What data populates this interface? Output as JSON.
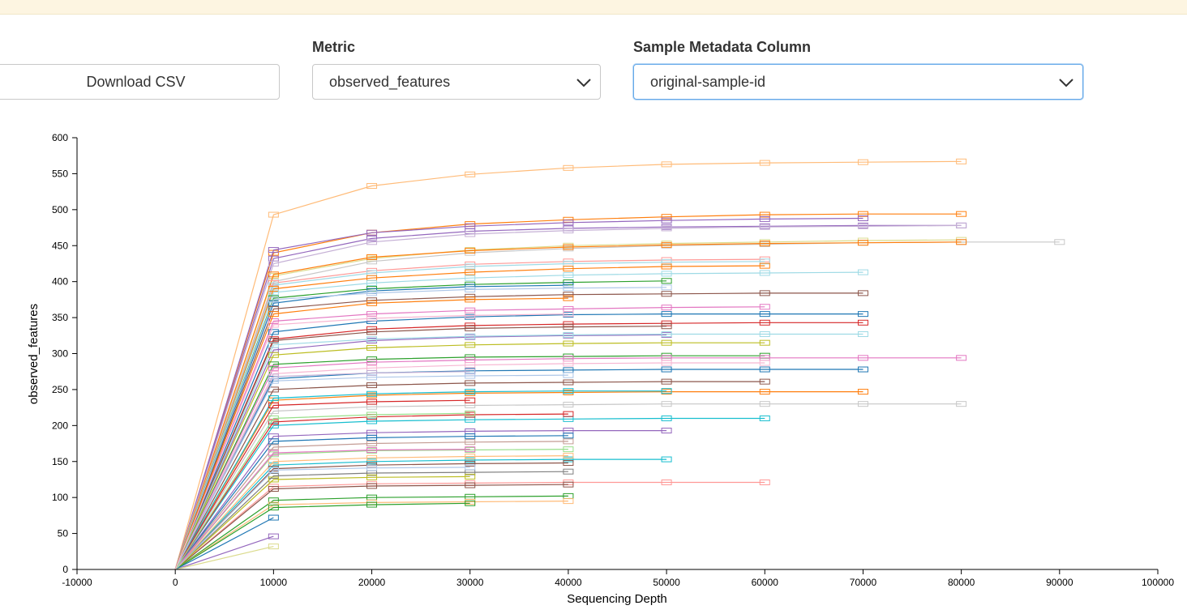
{
  "controls": {
    "download_label": "Download CSV",
    "metric_label": "Metric",
    "metric_value": "observed_features",
    "column_label": "Sample Metadata Column",
    "column_value": "original-sample-id"
  },
  "icons": {
    "metric_dropdown": "chevron-down-icon",
    "column_dropdown": "chevron-down-icon"
  },
  "chart_data": {
    "type": "line",
    "title": "",
    "xlabel": "Sequencing Depth",
    "ylabel": "observed_features",
    "xlim": [
      -10000,
      100000
    ],
    "ylim": [
      0,
      600
    ],
    "x_ticks": [
      -10000,
      0,
      10000,
      20000,
      30000,
      40000,
      50000,
      60000,
      70000,
      80000,
      90000,
      100000
    ],
    "y_ticks": [
      0,
      50,
      100,
      150,
      200,
      250,
      300,
      350,
      400,
      450,
      500,
      550,
      600
    ],
    "grid": false,
    "legend": "none",
    "palette": [
      "#1f77b4",
      "#aec7e8",
      "#ff7f0e",
      "#ffbb78",
      "#2ca02c",
      "#98df8a",
      "#d62728",
      "#ff9896",
      "#9467bd",
      "#c5b0d5",
      "#8c564b",
      "#c49c94",
      "#e377c2",
      "#f7b6d2",
      "#7f7f7f",
      "#c7c7c7",
      "#bcbd22",
      "#dbdb8d",
      "#17becf",
      "#9edae5"
    ],
    "note_boxes": "each series has a small box marker at every sampled depth",
    "series": [
      {
        "color": "#ffbb78",
        "x": [
          0,
          10000,
          20000,
          30000,
          40000,
          50000,
          60000,
          70000,
          80000
        ],
        "values": [
          0,
          493,
          533,
          549,
          558,
          563,
          565,
          566,
          567
        ]
      },
      {
        "color": "#ff7f0e",
        "x": [
          0,
          10000,
          20000,
          30000,
          40000,
          50000,
          60000,
          70000,
          80000
        ],
        "values": [
          0,
          440,
          468,
          480,
          486,
          490,
          493,
          494,
          494
        ]
      },
      {
        "color": "#9467bd",
        "x": [
          0,
          10000,
          20000,
          30000,
          40000,
          50000,
          60000,
          70000
        ],
        "values": [
          0,
          444,
          468,
          477,
          482,
          485,
          487,
          488
        ]
      },
      {
        "color": "#9467bd",
        "x": [
          0,
          10000,
          20000,
          30000,
          40000,
          50000,
          60000,
          70000,
          80000
        ],
        "values": [
          0,
          432,
          460,
          470,
          474,
          476,
          477,
          478,
          478
        ]
      },
      {
        "color": "#c5b0d5",
        "x": [
          0,
          10000,
          20000,
          30000,
          40000,
          50000,
          60000,
          70000,
          80000
        ],
        "values": [
          0,
          425,
          455,
          466,
          471,
          474,
          476,
          477,
          478
        ]
      },
      {
        "color": "#dbdb8d",
        "x": [
          0,
          10000,
          20000,
          30000,
          40000,
          50000,
          60000,
          70000,
          80000
        ],
        "values": [
          0,
          408,
          432,
          444,
          450,
          453,
          455,
          457,
          458
        ]
      },
      {
        "color": "#c7c7c7",
        "x": [
          0,
          10000,
          20000,
          30000,
          40000,
          50000,
          60000,
          70000,
          80000,
          90000
        ],
        "values": [
          0,
          400,
          428,
          440,
          446,
          450,
          452,
          454,
          455,
          455
        ]
      },
      {
        "color": "#ff7f0e",
        "x": [
          0,
          10000,
          20000,
          30000,
          40000,
          50000,
          60000,
          70000,
          80000
        ],
        "values": [
          0,
          410,
          434,
          443,
          448,
          451,
          453,
          454,
          455
        ]
      },
      {
        "color": "#ff9896",
        "x": [
          0,
          10000,
          20000,
          30000,
          40000,
          50000,
          60000
        ],
        "values": [
          0,
          398,
          415,
          424,
          428,
          430,
          431
        ]
      },
      {
        "color": "#9edae5",
        "x": [
          0,
          10000,
          20000,
          30000,
          40000,
          50000,
          60000
        ],
        "values": [
          0,
          395,
          412,
          421,
          425,
          427,
          428
        ]
      },
      {
        "color": "#ff7f0e",
        "x": [
          0,
          10000,
          20000,
          30000,
          40000,
          50000,
          60000
        ],
        "values": [
          0,
          390,
          405,
          413,
          418,
          421,
          422
        ]
      },
      {
        "color": "#9edae5",
        "x": [
          0,
          10000,
          20000,
          30000,
          40000,
          50000,
          60000,
          70000
        ],
        "values": [
          0,
          385,
          398,
          405,
          409,
          411,
          412,
          413
        ]
      },
      {
        "color": "#2ca02c",
        "x": [
          0,
          10000,
          20000,
          30000,
          40000,
          50000
        ],
        "values": [
          0,
          377,
          390,
          396,
          399,
          401
        ]
      },
      {
        "color": "#1f77b4",
        "x": [
          0,
          10000,
          20000,
          30000,
          40000
        ],
        "values": [
          0,
          370,
          387,
          393,
          395
        ]
      },
      {
        "color": "#aec7e8",
        "x": [
          0,
          10000,
          20000,
          30000,
          40000,
          50000
        ],
        "values": [
          0,
          375,
          384,
          389,
          391,
          392
        ]
      },
      {
        "color": "#8c564b",
        "x": [
          0,
          10000,
          20000,
          30000,
          40000,
          50000,
          60000,
          70000
        ],
        "values": [
          0,
          362,
          374,
          379,
          382,
          383,
          384,
          384
        ]
      },
      {
        "color": "#e377c2",
        "x": [
          0,
          10000,
          20000,
          30000,
          40000,
          50000,
          60000
        ],
        "values": [
          0,
          345,
          355,
          360,
          362,
          364,
          365
        ]
      },
      {
        "color": "#1f77b4",
        "x": [
          0,
          10000,
          20000,
          30000,
          40000,
          50000,
          60000,
          70000
        ],
        "values": [
          0,
          330,
          345,
          351,
          354,
          355,
          355,
          355
        ]
      },
      {
        "color": "#d62728",
        "x": [
          0,
          10000,
          20000,
          30000,
          40000,
          50000,
          60000,
          70000
        ],
        "values": [
          0,
          320,
          334,
          339,
          341,
          342,
          343,
          343
        ]
      },
      {
        "color": "#8c564b",
        "x": [
          0,
          10000,
          20000,
          30000,
          40000,
          50000
        ],
        "values": [
          0,
          318,
          330,
          335,
          337,
          338
        ]
      },
      {
        "color": "#9467bd",
        "x": [
          0,
          10000,
          20000,
          30000,
          40000,
          50000
        ],
        "values": [
          0,
          305,
          318,
          323,
          325,
          326
        ]
      },
      {
        "color": "#9edae5",
        "x": [
          0,
          10000,
          20000,
          30000,
          40000,
          50000,
          60000,
          70000
        ],
        "values": [
          0,
          312,
          320,
          324,
          326,
          327,
          327,
          327
        ]
      },
      {
        "color": "#bcbd22",
        "x": [
          0,
          10000,
          20000,
          30000,
          40000,
          50000,
          60000
        ],
        "values": [
          0,
          298,
          308,
          312,
          314,
          315,
          315
        ]
      },
      {
        "color": "#2ca02c",
        "x": [
          0,
          10000,
          20000,
          30000,
          40000,
          50000,
          60000
        ],
        "values": [
          0,
          285,
          292,
          295,
          296,
          297,
          297
        ]
      },
      {
        "color": "#e377c2",
        "x": [
          0,
          10000,
          20000,
          30000,
          40000,
          50000,
          60000,
          70000,
          80000
        ],
        "values": [
          0,
          280,
          288,
          291,
          293,
          294,
          294,
          294,
          294
        ]
      },
      {
        "color": "#f7b6d2",
        "x": [
          0,
          10000,
          20000,
          30000,
          40000,
          50000,
          60000
        ],
        "values": [
          0,
          272,
          280,
          284,
          286,
          287,
          287
        ]
      },
      {
        "color": "#1f77b4",
        "x": [
          0,
          10000,
          20000,
          30000,
          40000,
          50000,
          60000,
          70000
        ],
        "values": [
          0,
          265,
          273,
          276,
          277,
          278,
          278,
          278
        ]
      },
      {
        "color": "#8c564b",
        "x": [
          0,
          10000,
          20000,
          30000,
          40000,
          50000,
          60000
        ],
        "values": [
          0,
          250,
          256,
          259,
          260,
          261,
          261
        ]
      },
      {
        "color": "#ff7f0e",
        "x": [
          0,
          10000,
          20000,
          30000,
          40000,
          50000,
          60000,
          70000
        ],
        "values": [
          0,
          235,
          242,
          245,
          246,
          247,
          247,
          247
        ]
      },
      {
        "color": "#17becf",
        "x": [
          0,
          10000,
          20000,
          30000,
          40000,
          50000
        ],
        "values": [
          0,
          238,
          244,
          247,
          248,
          248
        ]
      },
      {
        "color": "#c7c7c7",
        "x": [
          0,
          10000,
          20000,
          30000,
          40000,
          50000,
          60000,
          70000,
          80000
        ],
        "values": [
          0,
          220,
          226,
          228,
          229,
          230,
          230,
          230,
          230
        ]
      },
      {
        "color": "#17becf",
        "x": [
          0,
          10000,
          20000,
          30000,
          40000,
          50000,
          60000
        ],
        "values": [
          0,
          200,
          206,
          208,
          209,
          210,
          210
        ]
      },
      {
        "color": "#9467bd",
        "x": [
          0,
          10000,
          20000,
          30000,
          40000,
          50000
        ],
        "values": [
          0,
          185,
          190,
          192,
          193,
          193
        ]
      },
      {
        "color": "#d62728",
        "x": [
          0,
          10000,
          20000,
          30000,
          40000
        ],
        "values": [
          0,
          205,
          212,
          215,
          216
        ]
      },
      {
        "color": "#1f77b4",
        "x": [
          0,
          10000,
          20000,
          30000,
          40000
        ],
        "values": [
          0,
          178,
          183,
          185,
          186
        ]
      },
      {
        "color": "#c49c94",
        "x": [
          0,
          10000,
          20000,
          30000,
          40000
        ],
        "values": [
          0,
          170,
          175,
          177,
          178
        ]
      },
      {
        "color": "#98df8a",
        "x": [
          0,
          10000,
          20000,
          30000,
          40000
        ],
        "values": [
          0,
          160,
          165,
          166,
          167
        ]
      },
      {
        "color": "#17becf",
        "x": [
          0,
          10000,
          20000,
          30000,
          40000,
          50000
        ],
        "values": [
          0,
          145,
          150,
          152,
          153,
          153
        ]
      },
      {
        "color": "#ffbb78",
        "x": [
          0,
          10000,
          20000,
          30000,
          40000
        ],
        "values": [
          0,
          150,
          155,
          157,
          158
        ]
      },
      {
        "color": "#8c564b",
        "x": [
          0,
          10000,
          20000,
          30000,
          40000
        ],
        "values": [
          0,
          140,
          145,
          147,
          148
        ]
      },
      {
        "color": "#7f7f7f",
        "x": [
          0,
          10000,
          20000,
          30000,
          40000
        ],
        "values": [
          0,
          130,
          134,
          135,
          136
        ]
      },
      {
        "color": "#ff9896",
        "x": [
          0,
          10000,
          20000,
          30000,
          40000,
          50000,
          60000
        ],
        "values": [
          0,
          115,
          119,
          120,
          121,
          121,
          121
        ]
      },
      {
        "color": "#8c564b",
        "x": [
          0,
          10000,
          20000,
          30000,
          40000
        ],
        "values": [
          0,
          112,
          116,
          117,
          118
        ]
      },
      {
        "color": "#2ca02c",
        "x": [
          0,
          10000,
          20000,
          30000,
          40000
        ],
        "values": [
          0,
          96,
          100,
          101,
          102
        ]
      },
      {
        "color": "#ffbb78",
        "x": [
          0,
          10000,
          20000,
          30000,
          40000
        ],
        "values": [
          0,
          90,
          93,
          94,
          95
        ]
      },
      {
        "color": "#2ca02c",
        "x": [
          0,
          10000,
          20000,
          30000
        ],
        "values": [
          0,
          86,
          90,
          92
        ]
      },
      {
        "color": "#9467bd",
        "x": [
          0,
          10000
        ],
        "values": [
          0,
          46
        ]
      },
      {
        "color": "#dbdb8d",
        "x": [
          0,
          10000
        ],
        "values": [
          0,
          32
        ]
      },
      {
        "color": "#1f77b4",
        "x": [
          0,
          10000
        ],
        "values": [
          0,
          72
        ]
      },
      {
        "color": "#bcbd22",
        "x": [
          0,
          10000,
          20000,
          30000
        ],
        "values": [
          0,
          125,
          128,
          129
        ]
      },
      {
        "color": "#e377c2",
        "x": [
          0,
          10000,
          20000,
          30000
        ],
        "values": [
          0,
          162,
          166,
          167
        ]
      },
      {
        "color": "#aec7e8",
        "x": [
          0,
          10000,
          20000,
          30000
        ],
        "values": [
          0,
          138,
          141,
          142
        ]
      },
      {
        "color": "#d62728",
        "x": [
          0,
          10000,
          20000,
          30000
        ],
        "values": [
          0,
          228,
          233,
          235
        ]
      },
      {
        "color": "#c5b0d5",
        "x": [
          0,
          10000,
          20000,
          30000
        ],
        "values": [
          0,
          268,
          273,
          275
        ]
      },
      {
        "color": "#ff7f0e",
        "x": [
          0,
          10000,
          20000,
          30000,
          40000
        ],
        "values": [
          0,
          355,
          370,
          375,
          377
        ]
      },
      {
        "color": "#aec7e8",
        "x": [
          0,
          10000,
          20000,
          30000,
          40000
        ],
        "values": [
          0,
          262,
          267,
          269,
          270
        ]
      },
      {
        "color": "#98df8a",
        "x": [
          0,
          10000,
          20000,
          30000
        ],
        "values": [
          0,
          210,
          215,
          217
        ]
      },
      {
        "color": "#f7b6d2",
        "x": [
          0,
          10000,
          20000,
          30000,
          40000
        ],
        "values": [
          0,
          340,
          349,
          353,
          355
        ]
      }
    ]
  }
}
